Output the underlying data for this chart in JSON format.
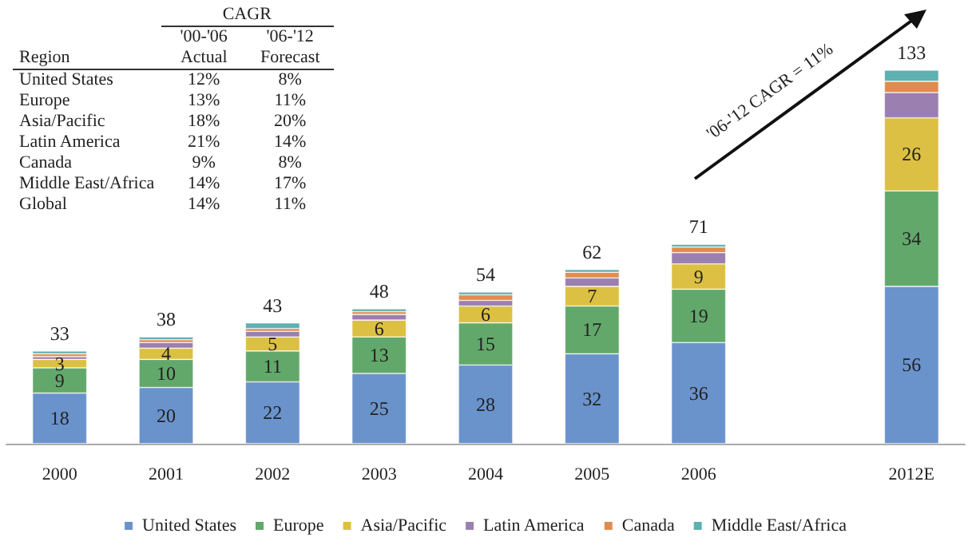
{
  "chart_data": {
    "type": "bar",
    "stacked": true,
    "legend": "bottom",
    "categories": [
      "2000",
      "2001",
      "2002",
      "2003",
      "2004",
      "2005",
      "2006",
      null,
      "2012E"
    ],
    "series": [
      {
        "name": "United States",
        "color": "#6a93cc",
        "values": [
          18,
          20,
          22,
          25,
          28,
          32,
          36,
          null,
          56
        ],
        "value_labels": [
          "18",
          "20",
          "22",
          "25",
          "28",
          "32",
          "36",
          null,
          "56"
        ]
      },
      {
        "name": "Europe",
        "color": "#62a86b",
        "values": [
          9,
          10,
          11,
          13,
          15,
          17,
          19,
          null,
          34
        ],
        "value_labels": [
          "9",
          "10",
          "11",
          "13",
          "15",
          "17",
          "19",
          null,
          "34"
        ]
      },
      {
        "name": "Asia/Pacific",
        "color": "#dcc043",
        "values": [
          3,
          4,
          5,
          6,
          6,
          7,
          9,
          null,
          26
        ],
        "value_labels": [
          "3",
          "4",
          "5",
          "6",
          "6",
          "7",
          "9",
          null,
          "26"
        ]
      },
      {
        "name": "Latin America",
        "color": "#9a7fb0",
        "values": [
          1,
          2,
          2,
          2,
          2,
          3,
          4,
          null,
          9
        ]
      },
      {
        "name": "Canada",
        "color": "#df8c4f",
        "values": [
          1,
          1,
          1,
          1,
          2,
          2,
          2,
          null,
          4
        ]
      },
      {
        "name": "Middle East/Africa",
        "color": "#5fb0b0",
        "values": [
          1,
          1,
          2,
          1,
          1,
          1,
          1,
          null,
          4
        ]
      }
    ],
    "totals": [
      "33",
      "38",
      "43",
      "48",
      "54",
      "62",
      "71",
      null,
      "133"
    ],
    "annotations": [
      "CAGR",
      "Region",
      "'00-'06 Actual",
      "'06-'12 Forecast",
      "United States",
      "12%",
      "8%",
      "Europe",
      "13%",
      "11%",
      "Asia/Pacific",
      "18%",
      "20%",
      "Latin America",
      "21%",
      "14%",
      "Canada",
      "9%",
      "8%",
      "Middle East/Africa",
      "14%",
      "17%",
      "Global",
      "14%",
      "11%",
      "'06-'12 CAGR = 11%"
    ]
  }
}
